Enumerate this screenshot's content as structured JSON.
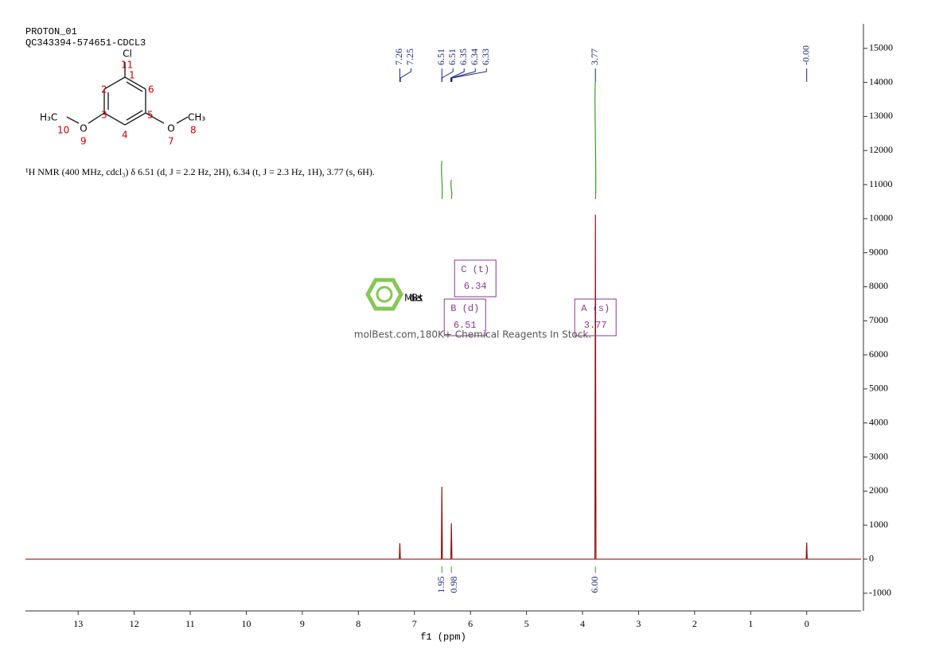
{
  "chart_data": {
    "type": "line",
    "title": "PROTON_01",
    "subtitle": "QC343394-574651-CDCL3",
    "annotation": "¹H NMR (400 MHz, cdcl₃) δ 6.51 (d, J = 2.2 Hz, 2H), 6.34 (t, J = 2.3 Hz, 1H), 3.77 (s, 6H).",
    "xlabel": "f1 (ppm)",
    "x": [
      13.94,
      7.27,
      7.26,
      7.25,
      6.52,
      6.51,
      6.5,
      6.35,
      6.34,
      6.33,
      3.78,
      3.77,
      3.76,
      0.01,
      0,
      -0.01,
      -0.97
    ],
    "values": [
      0,
      0,
      467,
      0,
      0,
      2126,
      0,
      0,
      1051,
      0,
      0,
      10117,
      0,
      0,
      490,
      0,
      0
    ],
    "color": "#8b1a1a",
    "xlim": [
      13.94,
      -0.97
    ],
    "ylim": [
      -1520,
      15720
    ],
    "xticks": [
      13,
      12,
      11,
      10,
      9,
      8,
      7,
      6,
      5,
      4,
      3,
      2,
      1,
      0
    ],
    "yticks": [
      -1000,
      0,
      1000,
      2000,
      3000,
      4000,
      5000,
      6000,
      7000,
      8000,
      9000,
      10000,
      11000,
      12000,
      13000,
      14000,
      15000
    ],
    "peak_picks": {
      "values": [
        7.26,
        7.25,
        6.51,
        6.51,
        6.35,
        6.34,
        6.33,
        3.77,
        0
      ],
      "value_labels": [
        "7.26",
        "7.25",
        "6.51",
        "6.51",
        "6.35",
        "6.34",
        "6.33",
        "3.77",
        "-0.00"
      ],
      "color": "#1a237e"
    },
    "integrals": {
      "x": [
        6.51,
        6.34,
        3.77
      ],
      "values": [
        1.95,
        0.98,
        6.0
      ],
      "value_labels": [
        "1.95",
        "0.98",
        "6.00"
      ],
      "color": "#3c9a2c"
    },
    "multiplets": [
      {
        "label": "C (t)",
        "value": 6.34
      },
      {
        "label": "B (d)",
        "value": 6.51
      },
      {
        "label": "A (s)",
        "value": 3.77
      }
    ],
    "multiplet_color": "#8b3a8b"
  },
  "structure": {
    "atoms": {
      "cl": "Cl",
      "o9": "O",
      "o7": "O",
      "me10": "H₃C",
      "me8": "CH₃"
    },
    "locants": [
      "1",
      "2",
      "3",
      "4",
      "5",
      "6",
      "7",
      "8",
      "9",
      "10",
      "11"
    ]
  },
  "watermark": {
    "brand": "MolBest",
    "text": "molBest.com,180K+ Chemical Reagents In Stock."
  }
}
